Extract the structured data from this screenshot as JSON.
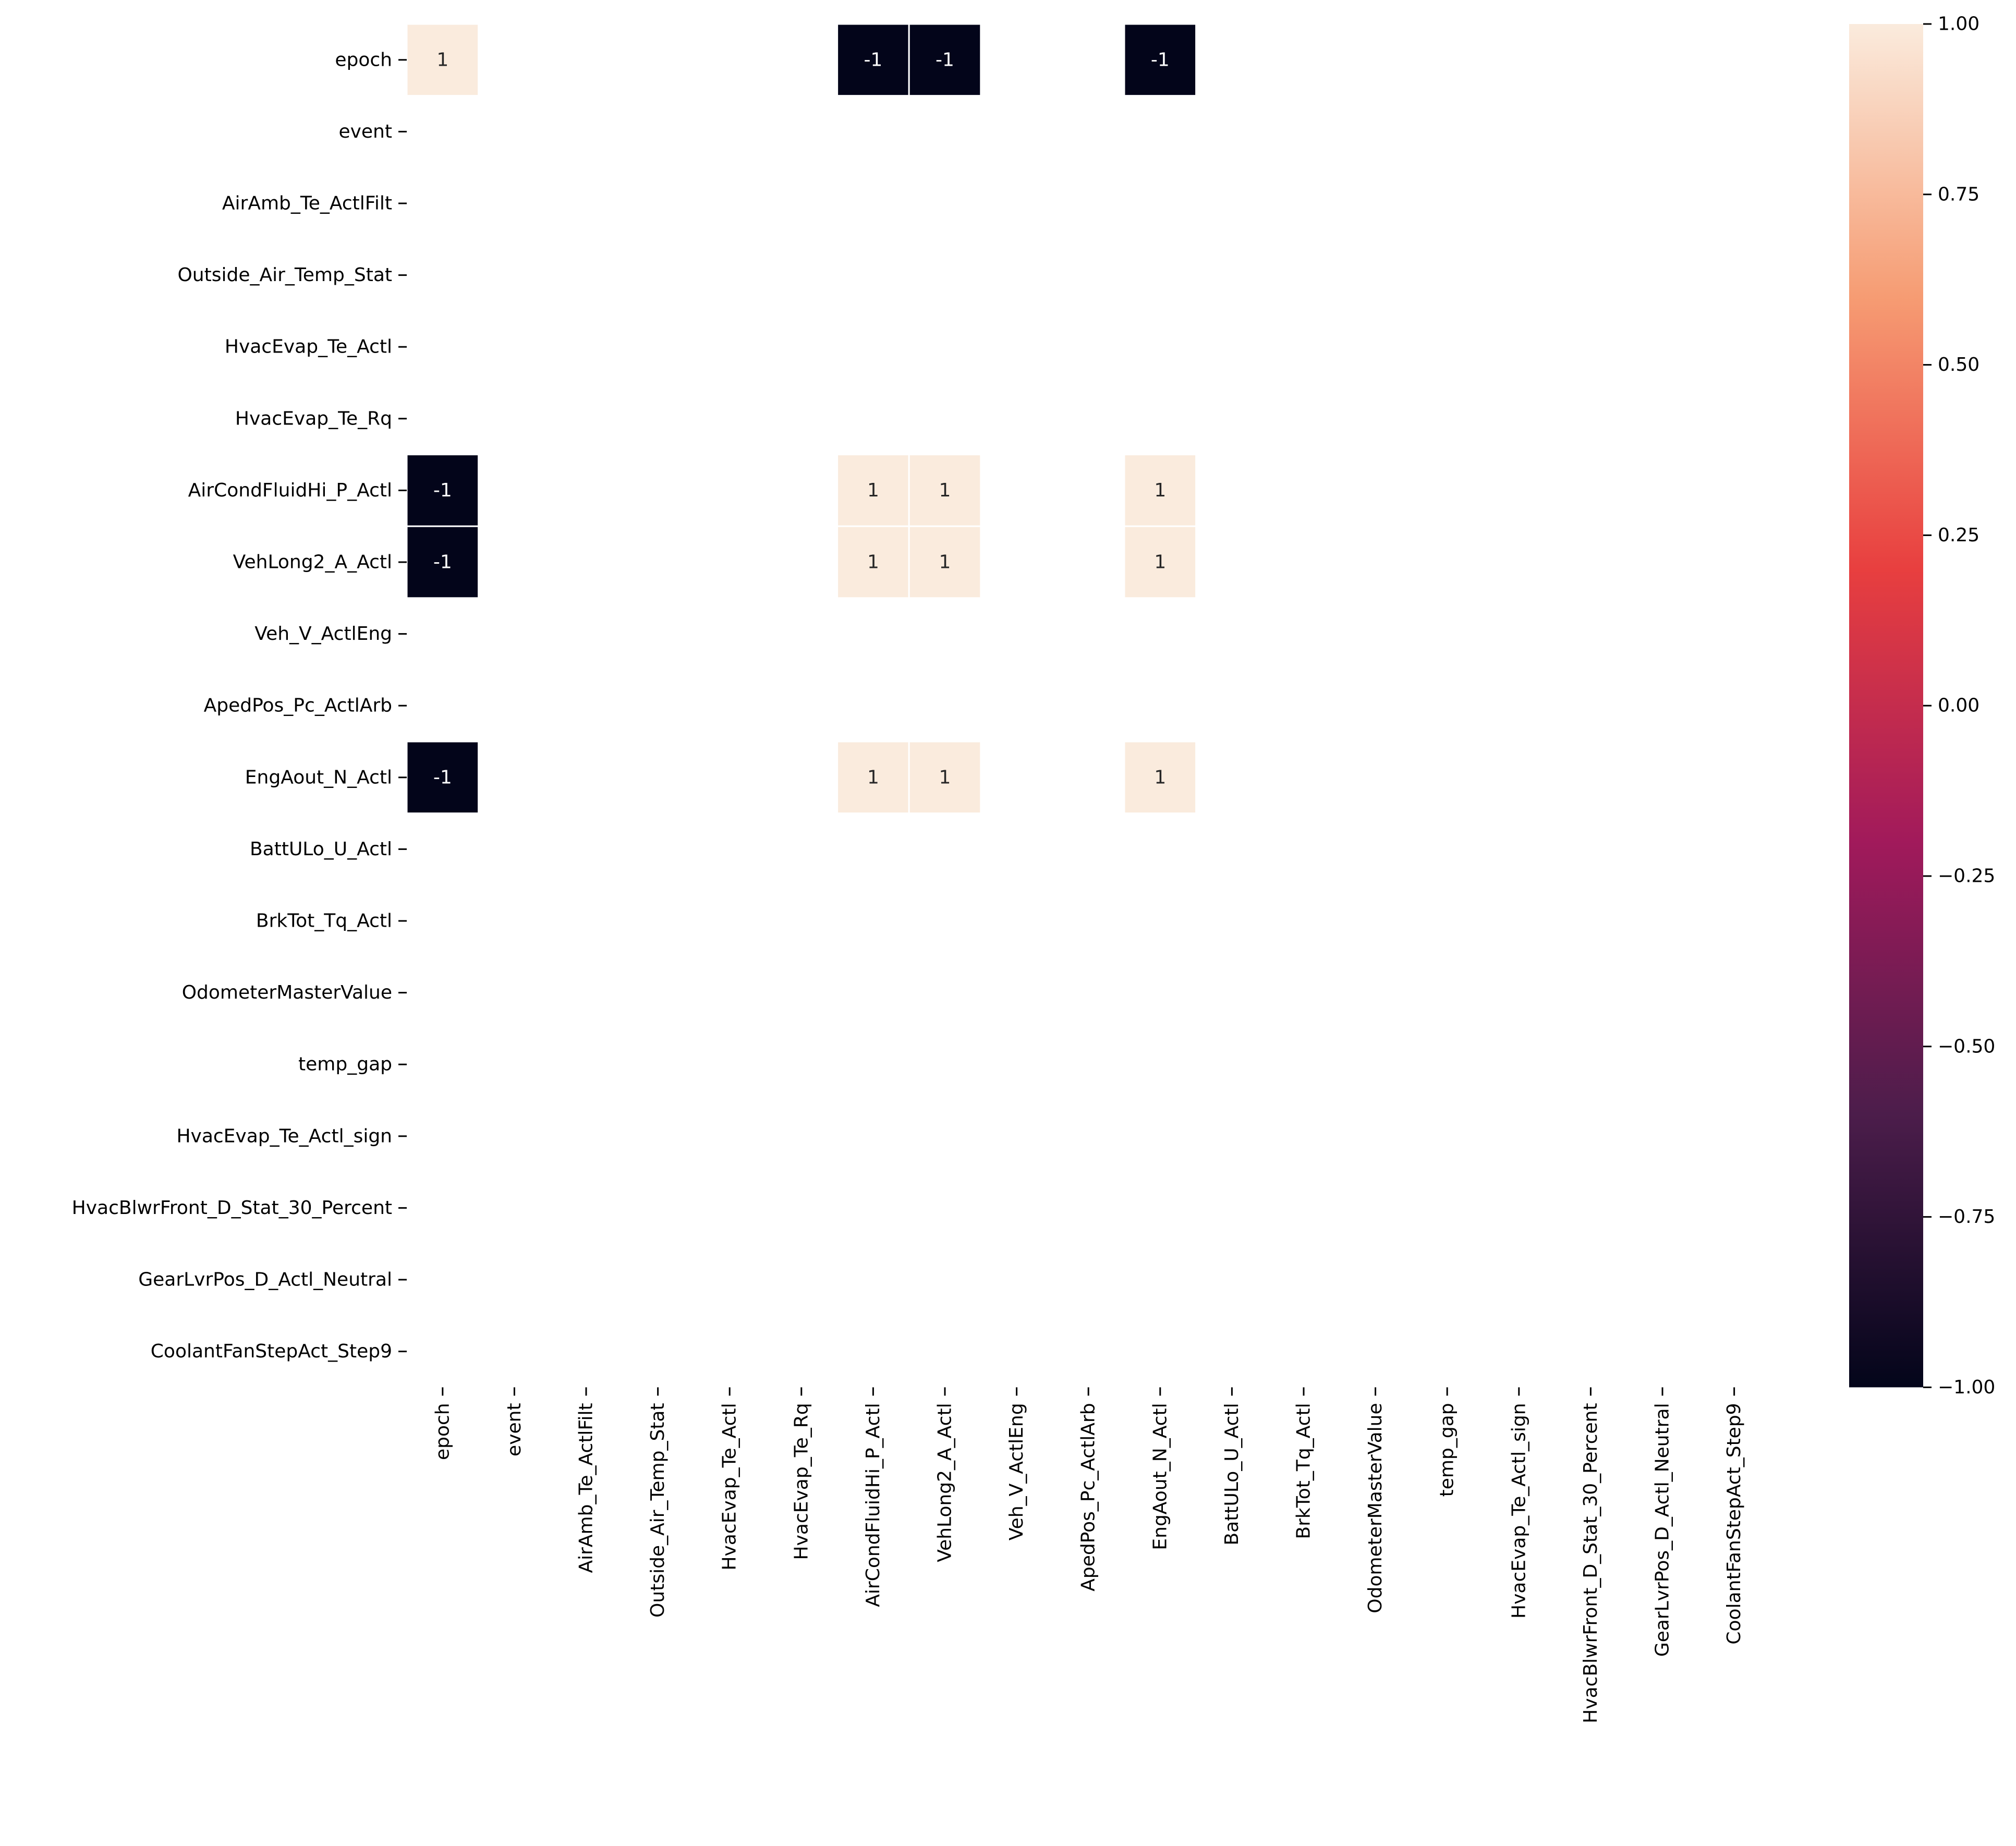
{
  "chart_data": {
    "type": "heatmap",
    "labels": [
      "epoch",
      "event",
      "AirAmb_Te_ActlFilt",
      "Outside_Air_Temp_Stat",
      "HvacEvap_Te_Actl",
      "HvacEvap_Te_Rq",
      "AirCondFluidHi_P_Actl",
      "VehLong2_A_Actl",
      "Veh_V_ActlEng",
      "ApedPos_Pc_ActlArb",
      "EngAout_N_Actl",
      "BattULo_U_Actl",
      "BrkTot_Tq_Actl",
      "OdometerMasterValue",
      "temp_gap",
      "HvacEvap_Te_Actl_sign",
      "HvacBlwrFront_D_Stat_30_Percent",
      "GearLvrPos_D_Actl_Neutral",
      "CoolantFanStepAct_Step9"
    ],
    "values": [
      [
        1,
        null,
        null,
        null,
        null,
        null,
        -1,
        -1,
        null,
        null,
        -1,
        null,
        null,
        null,
        null,
        null,
        null,
        null,
        null
      ],
      [
        null,
        null,
        null,
        null,
        null,
        null,
        null,
        null,
        null,
        null,
        null,
        null,
        null,
        null,
        null,
        null,
        null,
        null,
        null
      ],
      [
        null,
        null,
        null,
        null,
        null,
        null,
        null,
        null,
        null,
        null,
        null,
        null,
        null,
        null,
        null,
        null,
        null,
        null,
        null
      ],
      [
        null,
        null,
        null,
        null,
        null,
        null,
        null,
        null,
        null,
        null,
        null,
        null,
        null,
        null,
        null,
        null,
        null,
        null,
        null
      ],
      [
        null,
        null,
        null,
        null,
        null,
        null,
        null,
        null,
        null,
        null,
        null,
        null,
        null,
        null,
        null,
        null,
        null,
        null,
        null
      ],
      [
        null,
        null,
        null,
        null,
        null,
        null,
        null,
        null,
        null,
        null,
        null,
        null,
        null,
        null,
        null,
        null,
        null,
        null,
        null
      ],
      [
        -1,
        null,
        null,
        null,
        null,
        null,
        1,
        1,
        null,
        null,
        1,
        null,
        null,
        null,
        null,
        null,
        null,
        null,
        null
      ],
      [
        -1,
        null,
        null,
        null,
        null,
        null,
        1,
        1,
        null,
        null,
        1,
        null,
        null,
        null,
        null,
        null,
        null,
        null,
        null
      ],
      [
        null,
        null,
        null,
        null,
        null,
        null,
        null,
        null,
        null,
        null,
        null,
        null,
        null,
        null,
        null,
        null,
        null,
        null,
        null
      ],
      [
        null,
        null,
        null,
        null,
        null,
        null,
        null,
        null,
        null,
        null,
        null,
        null,
        null,
        null,
        null,
        null,
        null,
        null,
        null
      ],
      [
        -1,
        null,
        null,
        null,
        null,
        null,
        1,
        1,
        null,
        null,
        1,
        null,
        null,
        null,
        null,
        null,
        null,
        null,
        null
      ],
      [
        null,
        null,
        null,
        null,
        null,
        null,
        null,
        null,
        null,
        null,
        null,
        null,
        null,
        null,
        null,
        null,
        null,
        null,
        null
      ],
      [
        null,
        null,
        null,
        null,
        null,
        null,
        null,
        null,
        null,
        null,
        null,
        null,
        null,
        null,
        null,
        null,
        null,
        null,
        null
      ],
      [
        null,
        null,
        null,
        null,
        null,
        null,
        null,
        null,
        null,
        null,
        null,
        null,
        null,
        null,
        null,
        null,
        null,
        null,
        null
      ],
      [
        null,
        null,
        null,
        null,
        null,
        null,
        null,
        null,
        null,
        null,
        null,
        null,
        null,
        null,
        null,
        null,
        null,
        null,
        null
      ],
      [
        null,
        null,
        null,
        null,
        null,
        null,
        null,
        null,
        null,
        null,
        null,
        null,
        null,
        null,
        null,
        null,
        null,
        null,
        null
      ],
      [
        null,
        null,
        null,
        null,
        null,
        null,
        null,
        null,
        null,
        null,
        null,
        null,
        null,
        null,
        null,
        null,
        null,
        null,
        null
      ],
      [
        null,
        null,
        null,
        null,
        null,
        null,
        null,
        null,
        null,
        null,
        null,
        null,
        null,
        null,
        null,
        null,
        null,
        null,
        null
      ],
      [
        null,
        null,
        null,
        null,
        null,
        null,
        null,
        null,
        null,
        null,
        null,
        null,
        null,
        null,
        null,
        null,
        null,
        null,
        null
      ]
    ],
    "value_labels": {
      "positive": "1",
      "negative": "-1"
    },
    "colorbar": {
      "range": [
        -1,
        1
      ],
      "ticks": [
        1.0,
        0.75,
        0.5,
        0.25,
        0.0,
        -0.25,
        -0.5,
        -0.75,
        -1.0
      ],
      "tick_labels": [
        "1.00",
        "0.75",
        "0.50",
        "0.25",
        "0.00",
        "−0.25",
        "−0.50",
        "−0.75",
        "−1.00"
      ],
      "colormap": "rocket",
      "color_stops": [
        "#03051a",
        "#4c1d4b",
        "#a11a5b",
        "#e83f3f",
        "#f69c73",
        "#faebdd"
      ]
    },
    "grid": false,
    "legend_placement": "right"
  }
}
